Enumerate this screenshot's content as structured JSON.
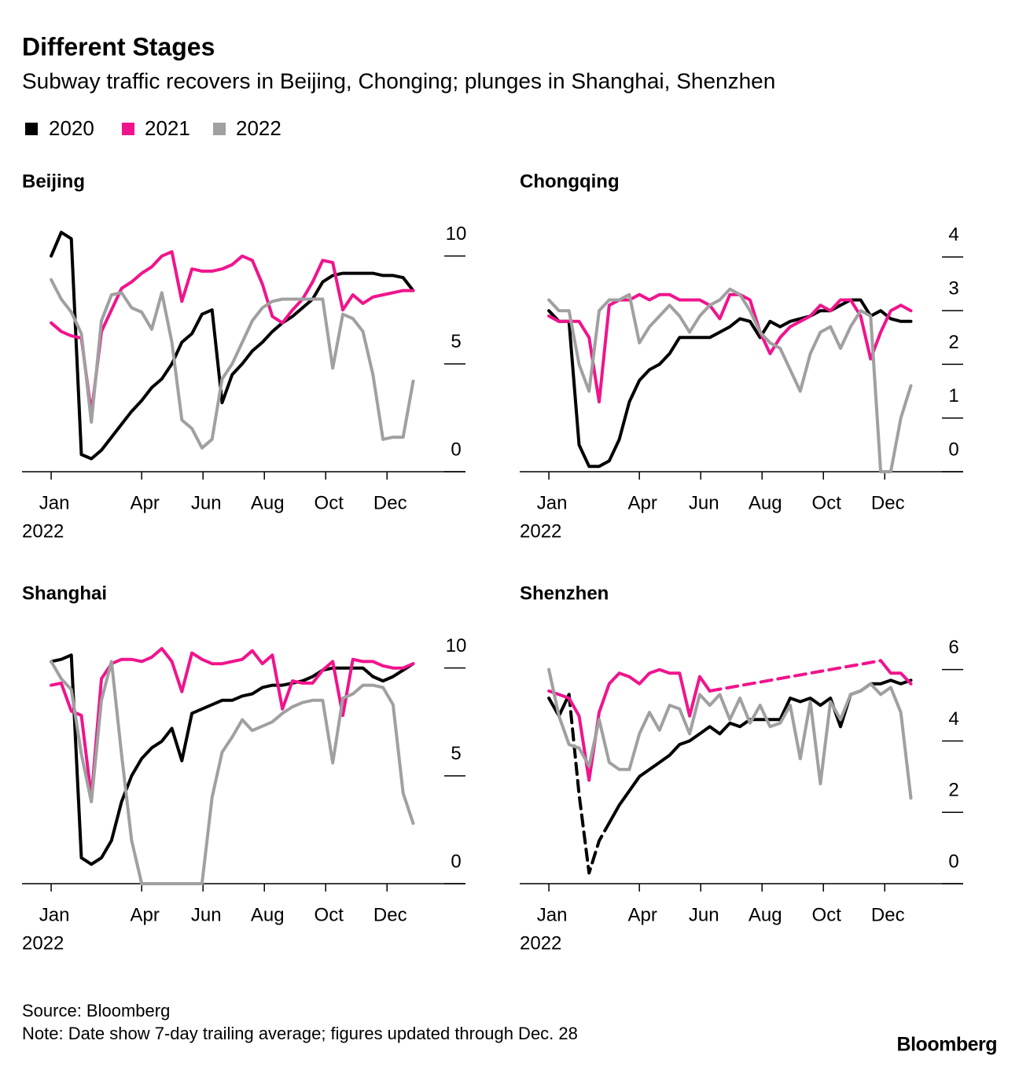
{
  "title": "Different Stages",
  "subtitle": "Subway traffic recovers in Beijing, Chonging; plunges in Shanghai, Shenzhen",
  "source": "Source: Bloomberg",
  "note": "Note: Date show 7-day trailing average; figures updated through Dec. 28",
  "brand": "Bloomberg",
  "chart_data": [
    {
      "type": "line",
      "title": "Beijing",
      "x_year": "2022",
      "x": [
        1,
        11,
        21,
        31,
        41,
        51,
        61,
        71,
        81,
        91,
        101,
        111,
        121,
        131,
        141,
        151,
        161,
        171,
        181,
        191,
        201,
        211,
        221,
        231,
        241,
        251,
        261,
        271,
        281,
        291,
        301,
        311,
        321,
        331,
        341,
        351,
        361
      ],
      "xlim": [
        -28,
        413
      ],
      "xticks": [
        {
          "value": 1,
          "label": "Jan"
        },
        {
          "value": 91,
          "label": "Apr"
        },
        {
          "value": 152,
          "label": "Jun"
        },
        {
          "value": 213,
          "label": "Aug"
        },
        {
          "value": 274,
          "label": "Oct"
        },
        {
          "value": 335,
          "label": "Dec"
        }
      ],
      "ylim": [
        0,
        11.3
      ],
      "yticks": [
        0,
        5,
        10
      ],
      "series": [
        {
          "name": "2020",
          "color": "#000000",
          "values": [
            10.0,
            11.1,
            10.8,
            0.8,
            0.6,
            1.0,
            1.6,
            2.2,
            2.8,
            3.3,
            3.9,
            4.3,
            5.0,
            6.0,
            6.4,
            7.3,
            7.5,
            3.2,
            4.5,
            5.0,
            5.6,
            6.0,
            6.5,
            6.9,
            7.2,
            7.6,
            8.0,
            8.8,
            9.1,
            9.2,
            9.2,
            9.2,
            9.2,
            9.1,
            9.1,
            9.0,
            8.4
          ]
        },
        {
          "name": "2021",
          "color": "#f0148c",
          "values": [
            6.9,
            6.5,
            6.3,
            6.2,
            2.7,
            6.5,
            7.5,
            8.5,
            8.8,
            9.2,
            9.5,
            10.0,
            10.2,
            7.9,
            9.4,
            9.3,
            9.3,
            9.4,
            9.6,
            10.0,
            9.8,
            8.7,
            7.2,
            6.9,
            7.5,
            8.0,
            8.8,
            9.8,
            9.7,
            7.5,
            8.2,
            7.8,
            8.1,
            8.2,
            8.3,
            8.4,
            8.4
          ]
        },
        {
          "name": "2022",
          "color": "#a0a0a0",
          "values": [
            8.9,
            8.0,
            7.4,
            6.4,
            2.3,
            7.0,
            8.2,
            8.3,
            7.6,
            7.4,
            6.6,
            8.3,
            6.0,
            2.4,
            2.0,
            1.1,
            1.5,
            4.3,
            5.0,
            6.0,
            7.0,
            7.6,
            7.9,
            8.0,
            8.0,
            8.0,
            8.0,
            8.0,
            4.8,
            7.3,
            7.1,
            6.5,
            4.5,
            1.5,
            1.6,
            1.6,
            4.2
          ]
        }
      ]
    },
    {
      "type": "line",
      "title": "Chongqing",
      "x_year": "2022",
      "x": [
        1,
        11,
        21,
        31,
        41,
        51,
        61,
        71,
        81,
        91,
        101,
        111,
        121,
        131,
        141,
        151,
        161,
        171,
        181,
        191,
        201,
        211,
        221,
        231,
        241,
        251,
        261,
        271,
        281,
        291,
        301,
        311,
        321,
        331,
        341,
        351,
        361
      ],
      "xlim": [
        -28,
        413
      ],
      "xticks": [
        {
          "value": 1,
          "label": "Jan"
        },
        {
          "value": 91,
          "label": "Apr"
        },
        {
          "value": 152,
          "label": "Jun"
        },
        {
          "value": 213,
          "label": "Aug"
        },
        {
          "value": 274,
          "label": "Oct"
        },
        {
          "value": 335,
          "label": "Dec"
        }
      ],
      "ylim": [
        0,
        4.54
      ],
      "yticks": [
        0,
        1,
        2,
        3,
        4
      ],
      "series": [
        {
          "name": "2020",
          "color": "#000000",
          "values": [
            3.0,
            2.8,
            2.8,
            0.5,
            0.1,
            0.1,
            0.2,
            0.6,
            1.3,
            1.7,
            1.9,
            2.0,
            2.2,
            2.5,
            2.5,
            2.5,
            2.5,
            2.6,
            2.7,
            2.85,
            2.8,
            2.5,
            2.8,
            2.7,
            2.8,
            2.85,
            2.9,
            3.0,
            3.0,
            3.1,
            3.2,
            3.2,
            2.9,
            3.0,
            2.85,
            2.8,
            2.8
          ]
        },
        {
          "name": "2021",
          "color": "#f0148c",
          "values": [
            2.9,
            2.8,
            2.8,
            2.8,
            2.5,
            1.3,
            3.1,
            3.2,
            3.2,
            3.3,
            3.2,
            3.3,
            3.3,
            3.2,
            3.2,
            3.2,
            3.1,
            2.85,
            3.3,
            3.3,
            3.2,
            2.6,
            2.2,
            2.5,
            2.7,
            2.8,
            2.9,
            3.1,
            3.0,
            3.2,
            3.2,
            2.9,
            2.1,
            2.6,
            3.0,
            3.1,
            3.0
          ]
        },
        {
          "name": "2022",
          "color": "#a0a0a0",
          "values": [
            3.2,
            3.0,
            3.0,
            2.0,
            1.5,
            3.0,
            3.2,
            3.2,
            3.3,
            2.4,
            2.7,
            2.9,
            3.1,
            2.9,
            2.6,
            2.9,
            3.1,
            3.2,
            3.4,
            3.3,
            3.0,
            2.6,
            2.4,
            2.3,
            1.9,
            1.5,
            2.2,
            2.6,
            2.7,
            2.3,
            2.7,
            3.0,
            2.9,
            0.0,
            0.0,
            1.0,
            1.6
          ]
        }
      ]
    },
    {
      "type": "line",
      "title": "Shanghai",
      "x_year": "2022",
      "x": [
        1,
        11,
        21,
        31,
        41,
        51,
        61,
        71,
        81,
        91,
        101,
        111,
        121,
        131,
        141,
        151,
        161,
        171,
        181,
        191,
        201,
        211,
        221,
        231,
        241,
        251,
        261,
        271,
        281,
        291,
        301,
        311,
        321,
        331,
        341,
        351,
        361
      ],
      "xlim": [
        -28,
        413
      ],
      "xticks": [
        {
          "value": 1,
          "label": "Jan"
        },
        {
          "value": 91,
          "label": "Apr"
        },
        {
          "value": 152,
          "label": "Jun"
        },
        {
          "value": 213,
          "label": "Aug"
        },
        {
          "value": 274,
          "label": "Oct"
        },
        {
          "value": 335,
          "label": "Dec"
        }
      ],
      "ylim": [
        0,
        11.3
      ],
      "yticks": [
        0,
        5,
        10
      ],
      "series": [
        {
          "name": "2020",
          "color": "#000000",
          "values": [
            10.3,
            10.4,
            10.6,
            1.2,
            0.9,
            1.2,
            2.0,
            3.8,
            5.0,
            5.8,
            6.3,
            6.6,
            7.2,
            5.7,
            7.9,
            8.1,
            8.3,
            8.5,
            8.5,
            8.7,
            8.8,
            9.1,
            9.2,
            9.2,
            9.3,
            9.4,
            9.6,
            9.9,
            10.0,
            10.0,
            10.0,
            10.0,
            9.6,
            9.4,
            9.6,
            9.9,
            10.2
          ]
        },
        {
          "name": "2021",
          "color": "#f0148c",
          "values": [
            9.2,
            9.3,
            8.0,
            7.8,
            4.0,
            9.5,
            10.2,
            10.4,
            10.4,
            10.3,
            10.5,
            10.9,
            10.3,
            8.9,
            10.7,
            10.4,
            10.2,
            10.2,
            10.3,
            10.4,
            10.8,
            10.2,
            10.6,
            8.1,
            9.4,
            9.3,
            9.3,
            9.9,
            10.3,
            7.8,
            10.4,
            10.3,
            10.3,
            10.1,
            10.0,
            10.0,
            10.2
          ]
        },
        {
          "name": "2022",
          "color": "#a0a0a0",
          "values": [
            10.3,
            9.5,
            9.0,
            6.0,
            3.8,
            8.5,
            10.3,
            6.0,
            2.0,
            0,
            0,
            0,
            0,
            0,
            0,
            0,
            4.0,
            6.1,
            6.8,
            7.6,
            7.1,
            7.3,
            7.5,
            7.9,
            8.2,
            8.4,
            8.5,
            8.5,
            5.6,
            8.6,
            8.8,
            9.2,
            9.2,
            9.1,
            8.3,
            4.2,
            2.8
          ]
        }
      ]
    },
    {
      "type": "line",
      "title": "Shenzhen",
      "x_year": "2022",
      "x": [
        1,
        11,
        21,
        31,
        41,
        51,
        61,
        71,
        81,
        91,
        101,
        111,
        121,
        131,
        141,
        151,
        161,
        171,
        181,
        191,
        201,
        211,
        221,
        231,
        241,
        251,
        261,
        271,
        281,
        291,
        301,
        311,
        321,
        331,
        341,
        351,
        361
      ],
      "xlim": [
        -28,
        413
      ],
      "xticks": [
        {
          "value": 1,
          "label": "Jan"
        },
        {
          "value": 91,
          "label": "Apr"
        },
        {
          "value": 152,
          "label": "Jun"
        },
        {
          "value": 213,
          "label": "Aug"
        },
        {
          "value": 274,
          "label": "Oct"
        },
        {
          "value": 335,
          "label": "Dec"
        }
      ],
      "ylim": [
        0,
        6.83
      ],
      "yticks": [
        0,
        2,
        4,
        6
      ],
      "series": [
        {
          "name": "2020",
          "color": "#000000",
          "dash_range": [
            21,
            61
          ],
          "values": [
            5.2,
            4.7,
            5.3,
            2.5,
            0.3,
            1.2,
            1.7,
            2.2,
            2.6,
            3.0,
            3.2,
            3.4,
            3.6,
            3.9,
            4.0,
            4.2,
            4.4,
            4.2,
            4.5,
            4.4,
            4.6,
            4.6,
            4.6,
            4.6,
            5.2,
            5.1,
            5.2,
            5.0,
            5.2,
            4.4,
            5.3,
            5.4,
            5.6,
            5.6,
            5.7,
            5.6,
            5.7
          ]
        },
        {
          "name": "2021",
          "color": "#f0148c",
          "dash_range": [
            161,
            331
          ],
          "values": [
            5.4,
            5.3,
            5.2,
            4.7,
            2.9,
            4.8,
            5.6,
            5.9,
            5.8,
            5.6,
            5.9,
            6.0,
            5.9,
            5.9,
            4.7,
            5.8,
            5.4,
            5.45,
            5.5,
            5.55,
            5.6,
            5.65,
            5.7,
            5.75,
            5.8,
            5.85,
            5.9,
            5.95,
            6.0,
            6.05,
            6.1,
            6.15,
            6.2,
            6.25,
            5.9,
            5.9,
            5.6
          ]
        },
        {
          "name": "2022",
          "color": "#a0a0a0",
          "values": [
            6.0,
            4.7,
            3.9,
            3.8,
            3.3,
            4.6,
            3.4,
            3.2,
            3.2,
            4.2,
            4.8,
            4.3,
            5.0,
            4.9,
            4.2,
            5.3,
            5.0,
            5.3,
            4.6,
            5.2,
            4.5,
            5.0,
            4.4,
            4.5,
            5.0,
            3.5,
            5.1,
            2.8,
            5.1,
            4.6,
            5.3,
            5.4,
            5.6,
            5.3,
            5.5,
            4.8,
            2.4
          ]
        }
      ]
    }
  ]
}
